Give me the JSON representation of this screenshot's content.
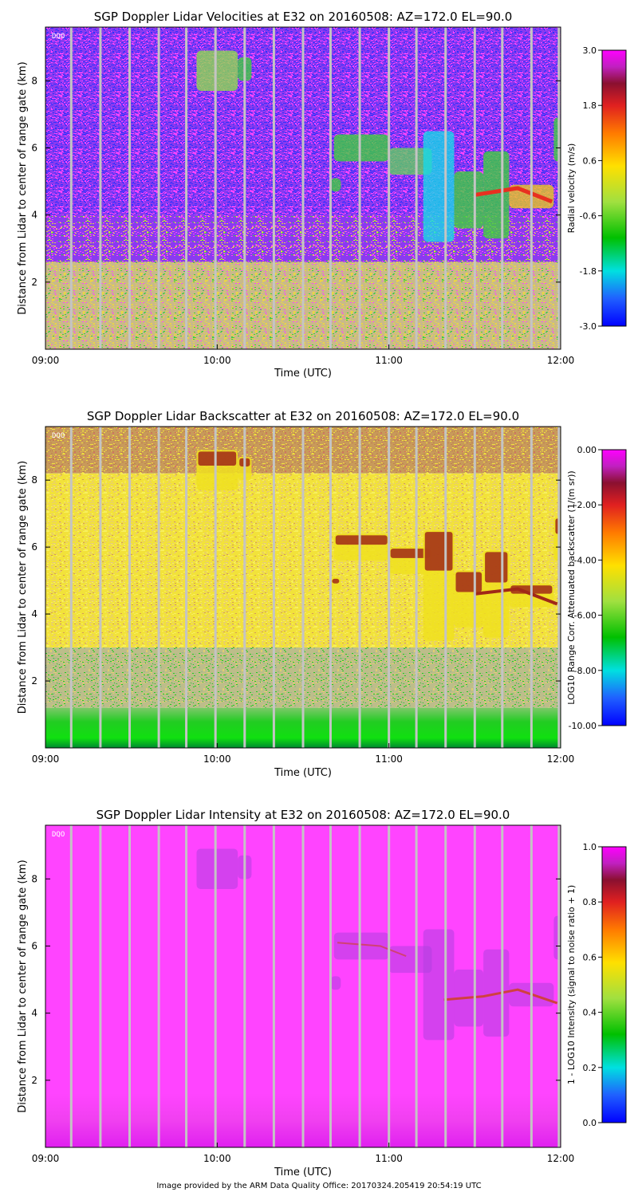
{
  "footer": "Image provided by the ARM Data Quality Office: 20170324.205419 20:54:19 UTC",
  "chart_data": [
    {
      "type": "heatmap",
      "title": "SGP Doppler Lidar Velocities at E32 on 20160508: AZ=172.0 EL=90.0",
      "xlabel": "Time (UTC)",
      "ylabel": "Distance from Lidar to center of range gate (km)",
      "xticks": [
        "09:00",
        "10:00",
        "11:00",
        "12:00"
      ],
      "yticks": [
        2,
        4,
        6,
        8
      ],
      "ylim": [
        0,
        9.6
      ],
      "xlim_hours": [
        9,
        12
      ],
      "badge": "DQO",
      "colorbar": {
        "label": "Radial velocity (m/s)",
        "ticks": [
          "3.0",
          "1.8",
          "0.6",
          "-0.6",
          "-1.8",
          "-3.0"
        ],
        "range": [
          -3.0,
          3.0
        ]
      },
      "colors": {
        "background": "#8a3af0",
        "noise": "#ff44ff",
        "deep": "#3030ff",
        "low": "#e8d44a",
        "feature": "#3fcf3f",
        "negative": "#18d8e8",
        "positive": "#e83020"
      }
    },
    {
      "type": "heatmap",
      "title": "SGP Doppler Lidar Backscatter at E32 on 20160508: AZ=172.0 EL=90.0",
      "xlabel": "Time (UTC)",
      "ylabel": "Distance from Lidar to center of range gate (km)",
      "xticks": [
        "09:00",
        "10:00",
        "11:00",
        "12:00"
      ],
      "yticks": [
        2,
        4,
        6,
        8
      ],
      "ylim": [
        0,
        9.6
      ],
      "xlim_hours": [
        9,
        12
      ],
      "badge": "DQO",
      "colorbar": {
        "label": "LOG10 Range Corr. Attenuated backscatter (1/(m sr))",
        "ticks": [
          "0.00",
          "-2.00",
          "-4.00",
          "-6.00",
          "-8.00",
          "-10.00"
        ],
        "range": [
          -10.0,
          0.0
        ]
      },
      "colors": {
        "top": "#c08050",
        "mid": "#f2e23a",
        "low": "#bdbd8a",
        "ground": "#22cc22",
        "feature": "#a02818"
      }
    },
    {
      "type": "heatmap",
      "title": "SGP Doppler Lidar Intensity at E32 on 20160508: AZ=172.0 EL=90.0",
      "xlabel": "Time (UTC)",
      "ylabel": "Distance from Lidar to center of range gate (km)",
      "xticks": [
        "09:00",
        "10:00",
        "11:00",
        "12:00"
      ],
      "yticks": [
        2,
        4,
        6,
        8
      ],
      "ylim": [
        0,
        9.6
      ],
      "xlim_hours": [
        9,
        12
      ],
      "badge": "DQO",
      "colorbar": {
        "label": "1 - LOG10 Intensity (signal to noise ratio + 1)",
        "ticks": [
          "1.0",
          "0.8",
          "0.6",
          "0.4",
          "0.2",
          "0.0"
        ],
        "range": [
          0.0,
          1.0
        ]
      },
      "colors": {
        "background": "#ff44ff",
        "ground": "#e020f0",
        "feature": "#b040e0",
        "edge": "#d04040"
      }
    }
  ]
}
